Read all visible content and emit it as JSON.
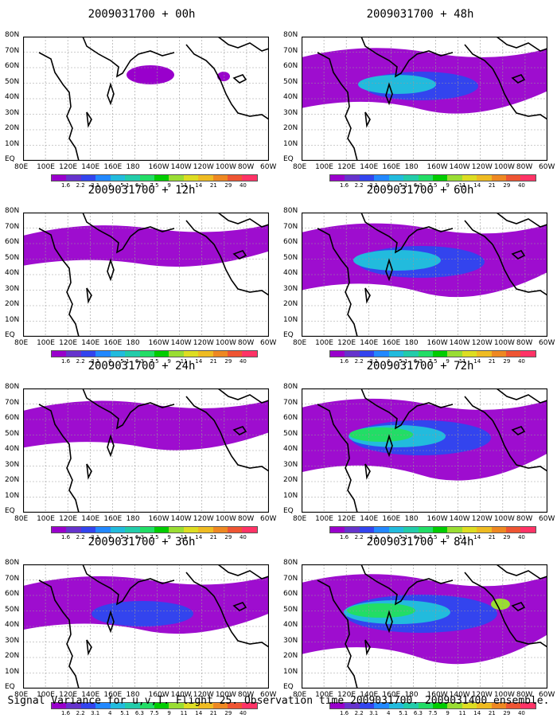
{
  "panels": [
    {
      "title": "2009031700 + 00h",
      "intensity": 0
    },
    {
      "title": "2009031700 + 12h",
      "intensity": 1
    },
    {
      "title": "2009031700 + 24h",
      "intensity": 2
    },
    {
      "title": "2009031700 + 36h",
      "intensity": 3
    },
    {
      "title": "2009031700 + 48h",
      "intensity": 4
    },
    {
      "title": "2009031700 + 60h",
      "intensity": 5
    },
    {
      "title": "2009031700 + 72h",
      "intensity": 6
    },
    {
      "title": "2009031700 + 84h",
      "intensity": 7
    }
  ],
  "y_labels": [
    "80N",
    "70N",
    "60N",
    "50N",
    "40N",
    "30N",
    "20N",
    "10N",
    "EQ"
  ],
  "x_labels": [
    "80E",
    "100E",
    "120E",
    "140E",
    "160E",
    "180",
    "160W",
    "140W",
    "120W",
    "100W",
    "80W",
    "60W"
  ],
  "colorbar": {
    "labels": [
      "1.6",
      "2.2",
      "3.1",
      "4",
      "5.1",
      "6.3",
      "7.5",
      "9",
      "11",
      "14",
      "21",
      "29",
      "40"
    ],
    "colors": [
      "#9900cc",
      "#6633cc",
      "#3344ee",
      "#2288ff",
      "#22bbdd",
      "#22ccaa",
      "#22dd66",
      "#00cc00",
      "#99dd33",
      "#dddd22",
      "#eebb22",
      "#ee8822",
      "#ee5533",
      "#ff3366"
    ]
  },
  "caption": "Signal Variance for u,v,T. Flight 25. Observation time 2009031700. 2009031400 ensemble."
}
